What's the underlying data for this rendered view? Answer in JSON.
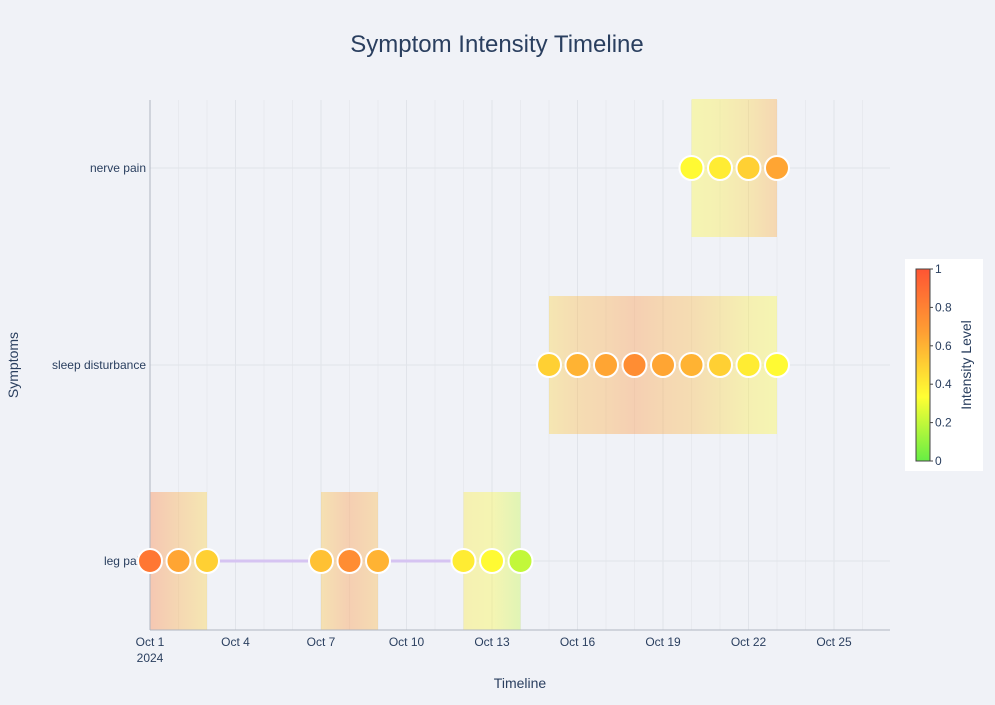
{
  "chart_data": {
    "type": "scatter",
    "title": "Symptom Intensity Timeline",
    "xlabel": "Timeline",
    "ylabel": "Symptoms",
    "x_start": "2024-10-01",
    "x_range": [
      "2024-10-01",
      "2024-10-27"
    ],
    "x_ticks": [
      "Oct 1",
      "Oct 4",
      "Oct 7",
      "Oct 10",
      "Oct 13",
      "Oct 16",
      "Oct 19",
      "Oct 22",
      "Oct 25"
    ],
    "x_tick_year": "2024",
    "categories": [
      "leg pain",
      "sleep disturbance",
      "nerve pain"
    ],
    "grid": true,
    "colorbar": {
      "title": "Intensity Level",
      "range": [
        0,
        1
      ],
      "ticks": [
        "0",
        "0.2",
        "0.4",
        "0.6",
        "0.8",
        "1"
      ],
      "placement": "right",
      "colors": [
        "#66ee44",
        "#ffff33",
        "#ffa033",
        "#ff5533"
      ]
    },
    "connector_color": "#d6c4f2",
    "series": [
      {
        "name": "leg pain",
        "points": [
          {
            "x": "2024-10-01",
            "intensity": 0.85
          },
          {
            "x": "2024-10-02",
            "intensity": 0.65
          },
          {
            "x": "2024-10-03",
            "intensity": 0.5
          },
          {
            "x": "2024-10-07",
            "intensity": 0.55
          },
          {
            "x": "2024-10-08",
            "intensity": 0.75
          },
          {
            "x": "2024-10-09",
            "intensity": 0.6
          },
          {
            "x": "2024-10-12",
            "intensity": 0.4
          },
          {
            "x": "2024-10-13",
            "intensity": 0.35
          },
          {
            "x": "2024-10-14",
            "intensity": 0.2
          }
        ]
      },
      {
        "name": "sleep disturbance",
        "points": [
          {
            "x": "2024-10-15",
            "intensity": 0.5
          },
          {
            "x": "2024-10-16",
            "intensity": 0.6
          },
          {
            "x": "2024-10-17",
            "intensity": 0.65
          },
          {
            "x": "2024-10-18",
            "intensity": 0.75
          },
          {
            "x": "2024-10-19",
            "intensity": 0.65
          },
          {
            "x": "2024-10-20",
            "intensity": 0.6
          },
          {
            "x": "2024-10-21",
            "intensity": 0.5
          },
          {
            "x": "2024-10-22",
            "intensity": 0.4
          },
          {
            "x": "2024-10-23",
            "intensity": 0.35
          }
        ]
      },
      {
        "name": "nerve pain",
        "points": [
          {
            "x": "2024-10-20",
            "intensity": 0.35
          },
          {
            "x": "2024-10-21",
            "intensity": 0.4
          },
          {
            "x": "2024-10-22",
            "intensity": 0.5
          },
          {
            "x": "2024-10-23",
            "intensity": 0.65
          }
        ]
      }
    ]
  }
}
